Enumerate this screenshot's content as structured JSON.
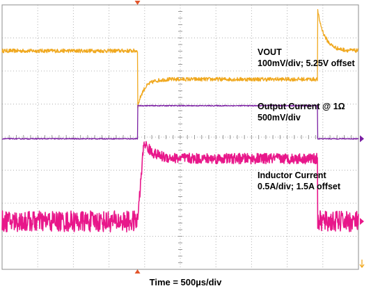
{
  "chart_data": {
    "type": "line",
    "x_axis_label": "Time = 500µs/div",
    "grid": "on, 10 horizontal x 8 vertical divisions, dotted",
    "background": "#ffffff",
    "x_divisions": [
      0,
      10
    ],
    "y_divisions": [
      0,
      8
    ],
    "trigger_time_div": 3.8,
    "load_release_time_div": 8.85,
    "series": [
      {
        "key": "vout",
        "color": "#f0a81e",
        "label_lines": [
          "VOUT",
          "100mV/div; 5.25V offset"
        ],
        "ground_marker": false,
        "description_levels_div": {
          "before": 6.61,
          "undershoot": 4.9,
          "settled": 5.75,
          "overshoot": 7.85,
          "after": 6.61
        }
      },
      {
        "key": "output_current",
        "color": "#7a1fa2",
        "label_lines": [
          "Output Current @ 1Ω",
          "500mV/div"
        ],
        "ground_marker": true,
        "description_levels_div": {
          "low": 3.95,
          "high": 4.95
        }
      },
      {
        "key": "inductor_current",
        "color": "#e8178a",
        "label_lines": [
          "Inductor Current",
          "0.5A/div; 1.5A offset"
        ],
        "ground_marker": true,
        "description_levels_div": {
          "low": 1.45,
          "peak": 3.85,
          "high": 3.35
        }
      }
    ]
  }
}
